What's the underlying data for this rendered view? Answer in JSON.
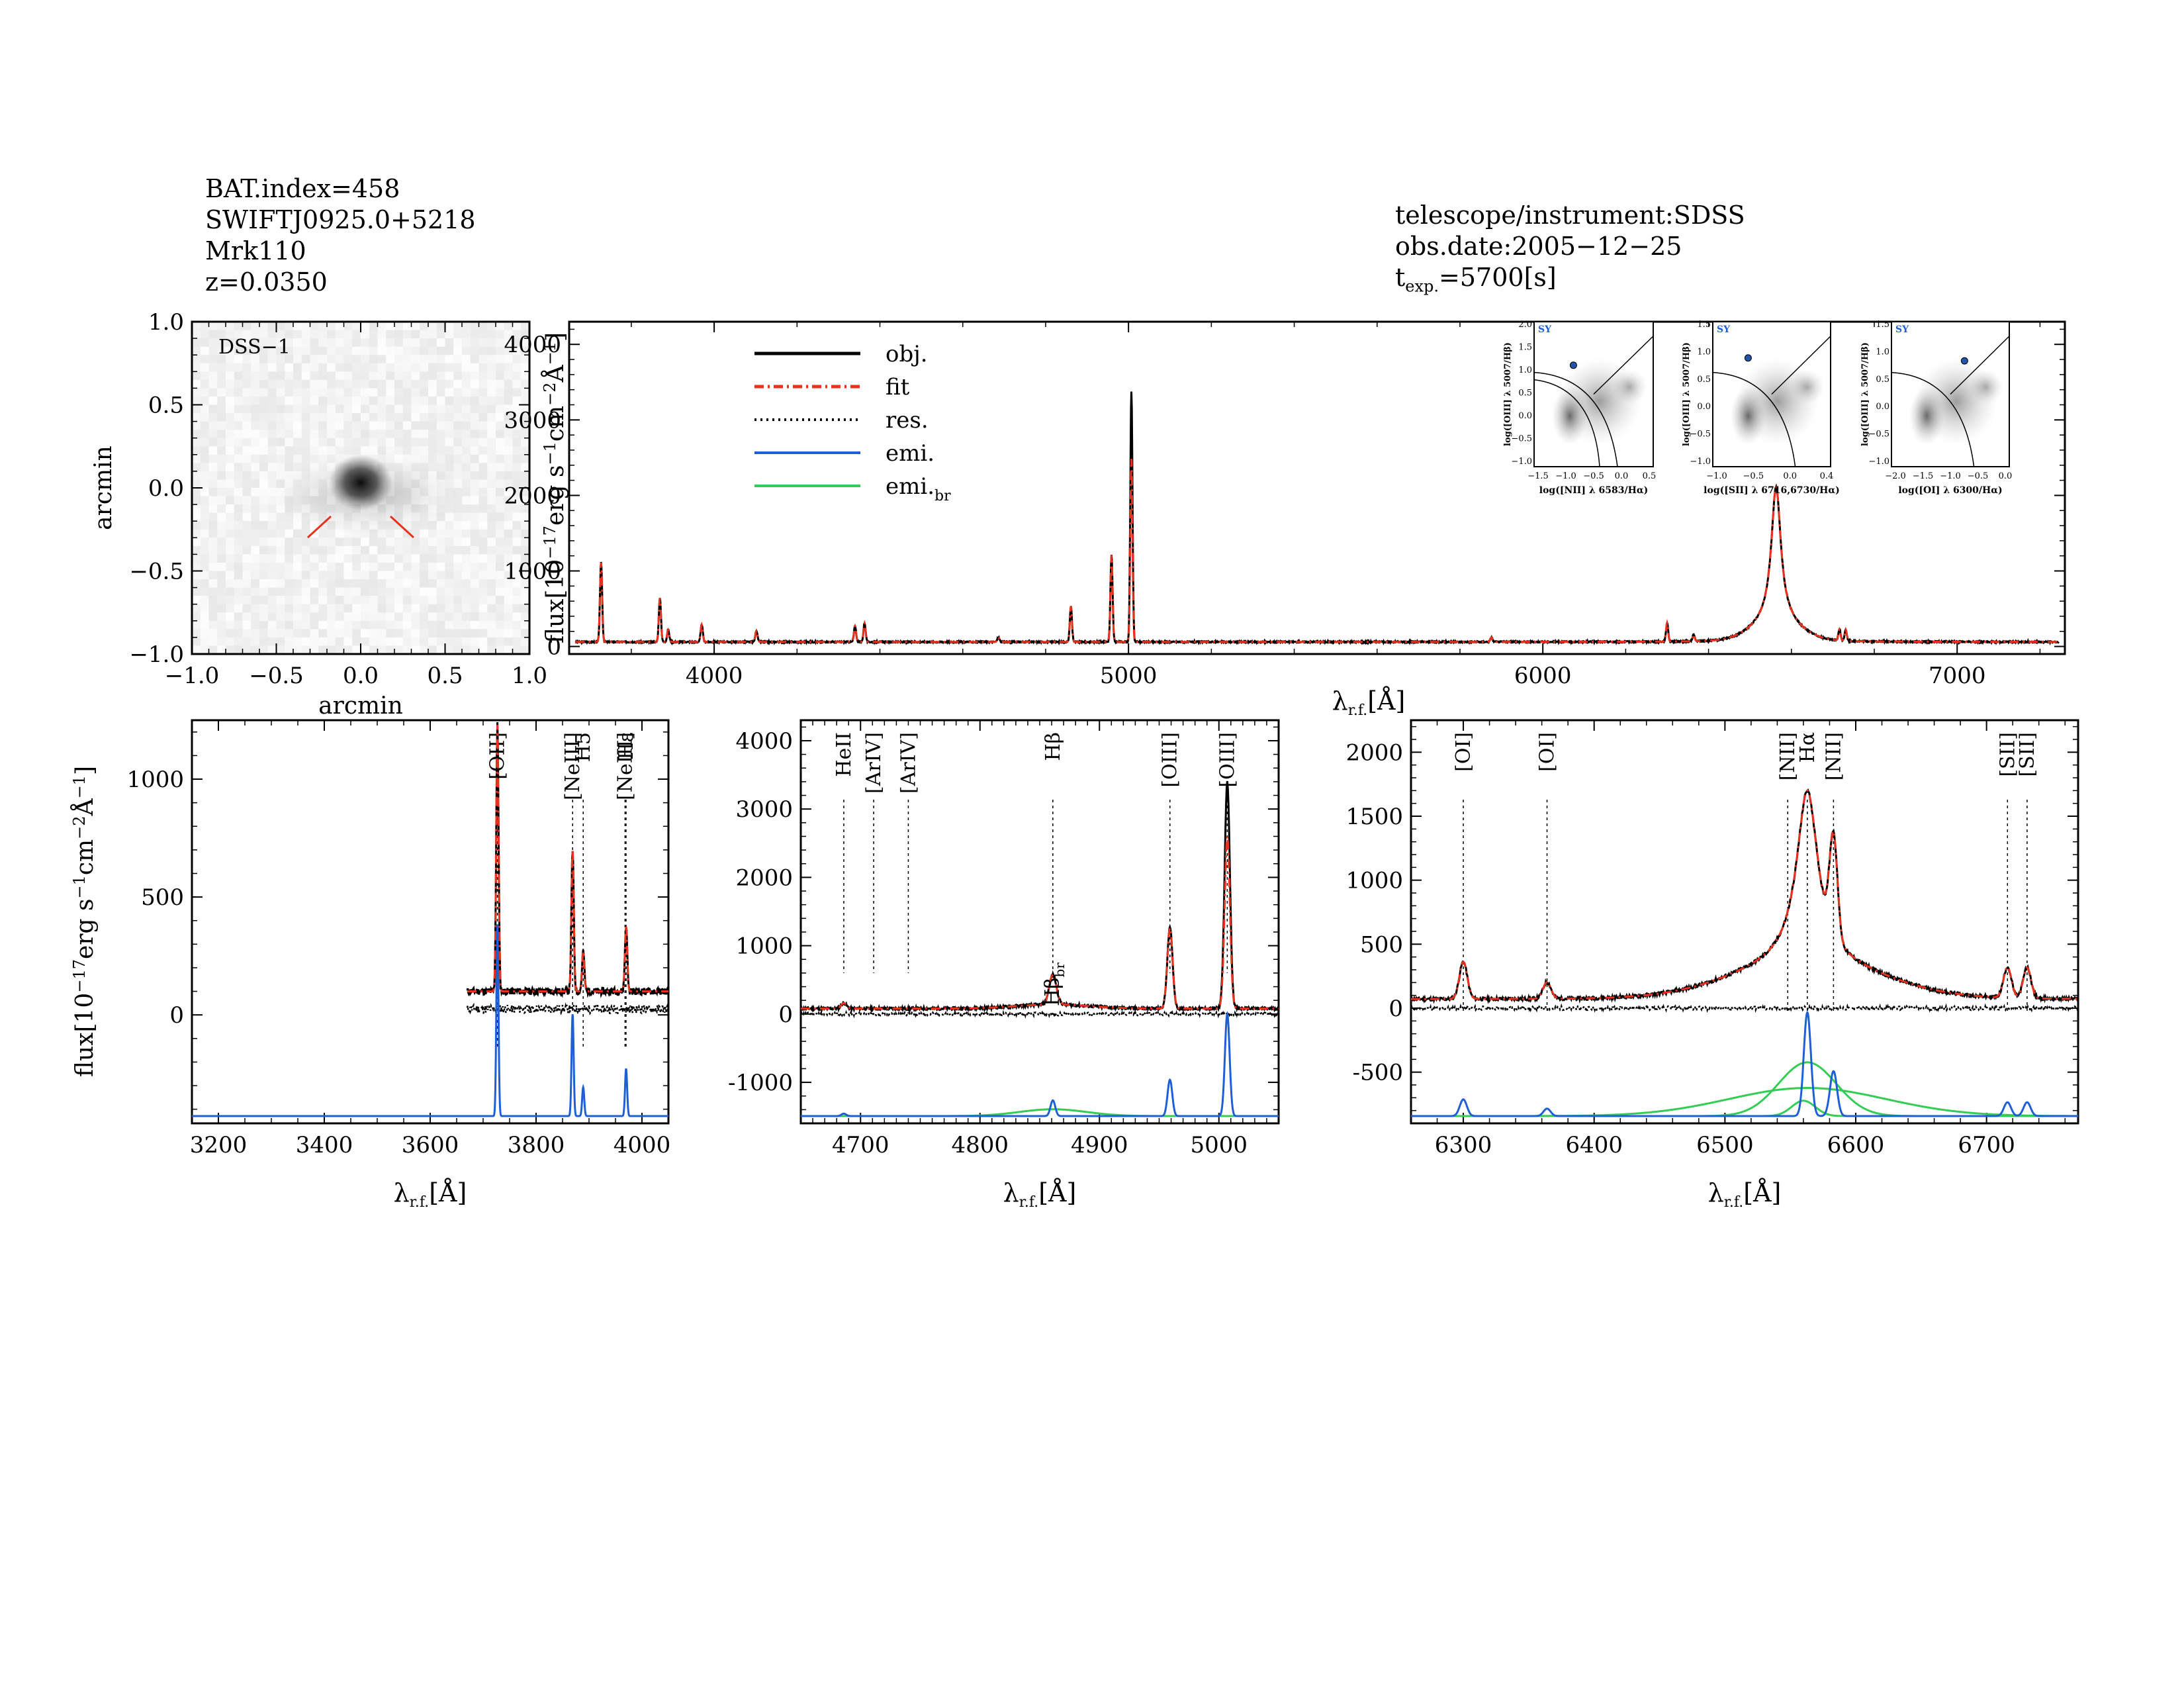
{
  "header_left": {
    "line1": "BAT.index=458",
    "line2": "SWIFTJ0925.0+5218",
    "line3": "Mrk110",
    "line4": "z=0.0350"
  },
  "header_right": {
    "line1": "telescope/instrument:SDSS",
    "line2": "obs.date:2005−12−25",
    "line3_pre": "t",
    "line3_sub": "exp.",
    "line3_post": "=5700[s]"
  },
  "colors": {
    "obj": "#000000",
    "fit": "#e8321e",
    "res": "#000000",
    "emi": "#1f5fd6",
    "emi_br": "#33cc55"
  },
  "chart_data": [
    {
      "id": "image",
      "type": "heatmap",
      "label": "DSS−1",
      "xlabel": "arcmin",
      "ylabel": "arcmin",
      "xlim": [
        -1.0,
        1.0
      ],
      "ylim": [
        -1.0,
        1.0
      ],
      "xticks": [
        "−1.0",
        "−0.5",
        "0.0",
        "0.5",
        "1.0"
      ],
      "yticks": [
        "−1.0",
        "−0.5",
        "0.0",
        "0.5",
        "1.0"
      ],
      "source_xy": [
        0.0,
        0.0
      ]
    },
    {
      "id": "full",
      "type": "line",
      "ylabel": "flux[10⁻¹⁷erg s⁻¹cm⁻²Å⁻¹]",
      "xlabel": "λr.f.[Å]",
      "xlim": [
        3650,
        7260
      ],
      "ylim": [
        -100,
        4300
      ],
      "xticks": [
        4000,
        5000,
        6000,
        7000
      ],
      "yticks": [
        0,
        1000,
        2000,
        3000,
        4000
      ],
      "continuum": 60,
      "lines": [
        {
          "x": 3727,
          "peak": 1050
        },
        {
          "x": 3869,
          "peak": 580
        },
        {
          "x": 3889,
          "peak": 160
        },
        {
          "x": 3970,
          "peak": 230
        },
        {
          "x": 4102,
          "peak": 150
        },
        {
          "x": 4340,
          "peak": 210
        },
        {
          "x": 4363,
          "peak": 250
        },
        {
          "x": 4686,
          "peak": 60
        },
        {
          "x": 4861,
          "peak": 470
        },
        {
          "x": 4959,
          "peak": 1150
        },
        {
          "x": 5007,
          "peak": 3320
        },
        {
          "x": 5876,
          "peak": 60
        },
        {
          "x": 6300,
          "peak": 250
        },
        {
          "x": 6364,
          "peak": 90
        },
        {
          "x": 6563,
          "peak": 1800
        },
        {
          "x": 6716,
          "peak": 150
        },
        {
          "x": 6731,
          "peak": 150
        }
      ],
      "legend": [
        "obj.",
        "fit",
        "res.",
        "emi.",
        "emi.br"
      ]
    },
    {
      "id": "bpt",
      "type": "scatter",
      "panels": [
        {
          "xlabel": "log([NII] λ 6583/Hα)",
          "ylabel": "log([OIII] λ 5007/Hβ)",
          "tag": "SY",
          "xticks": [
            "−1.5",
            "−1.0",
            "−0.5",
            "0.0",
            "0.5"
          ],
          "yticks": [
            "−1.0",
            "−0.5",
            "0.0",
            "0.5",
            "1.0",
            "1.5",
            "2.0"
          ],
          "point": [
            -0.75,
            0.75
          ]
        },
        {
          "xlabel": "log([SII] λ 6716,6730/Hα)",
          "ylabel": "log([OIII] λ 5007/Hβ)",
          "tag": "SY",
          "xticks": [
            "−1.0",
            "−0.5",
            "0.0",
            "0.4"
          ],
          "yticks": [
            "−1.0",
            "−0.5",
            "0.0",
            "0.5",
            "1.0",
            "1.5"
          ],
          "point": [
            -0.55,
            0.85
          ]
        },
        {
          "xlabel": "log([OI] λ 6300/Hα)",
          "ylabel": "log([OIII] λ 5007/Hβ)",
          "tag": "SY",
          "xticks": [
            "−2.0",
            "−1.5",
            "−1.0",
            "−0.5",
            "0.0"
          ],
          "yticks": [
            "−1.0",
            "−0.5",
            "0.0",
            "0.5",
            "1.0",
            "1.5"
          ],
          "point": [
            -0.9,
            0.8
          ]
        }
      ]
    },
    {
      "id": "zoom1",
      "type": "line",
      "xlim": [
        3150,
        4050
      ],
      "ylim": [
        -460,
        1250
      ],
      "xticks": [
        3200,
        3400,
        3600,
        3800,
        4000
      ],
      "yticks": [
        0,
        500,
        1000
      ],
      "ylabel": "flux[10⁻¹⁷erg s⁻¹cm⁻²Å⁻¹]",
      "xlabel": "λr.f.[Å]",
      "data_start": 3670,
      "continuum": 100,
      "lines": [
        {
          "x": 3727,
          "peak": 1130
        },
        {
          "x": 3869,
          "peak": 600
        },
        {
          "x": 3889,
          "peak": 170
        },
        {
          "x": 3970,
          "peak": 280
        }
      ],
      "markers": [
        {
          "x": 3727,
          "label": "[OII]"
        },
        {
          "x": 3869,
          "label": "[NeIII]"
        },
        {
          "x": 3889,
          "label": "H5"
        },
        {
          "x": 3968,
          "label": "[NeIII]"
        },
        {
          "x": 3970,
          "label": "Hε"
        }
      ]
    },
    {
      "id": "zoom2",
      "type": "line",
      "xlim": [
        4650,
        5050
      ],
      "ylim": [
        -1600,
        4300
      ],
      "xticks": [
        4700,
        4800,
        4900,
        5000
      ],
      "yticks": [
        -1000,
        0,
        1000,
        2000,
        3000,
        4000
      ],
      "xlabel": "λr.f.[Å]",
      "continuum": 80,
      "lines": [
        {
          "x": 4686,
          "peak": 80
        },
        {
          "x": 4861,
          "peak": 510
        },
        {
          "x": 4959,
          "peak": 1180
        },
        {
          "x": 5007,
          "peak": 3320
        }
      ],
      "markers": [
        {
          "x": 4686,
          "label": "HeII"
        },
        {
          "x": 4711,
          "label": "[ArIV]"
        },
        {
          "x": 4740,
          "label": "[ArIV]"
        },
        {
          "x": 4861,
          "label": "Hβ"
        },
        {
          "x": 4959,
          "label": "[OIII]"
        },
        {
          "x": 5007,
          "label": "[OIII]"
        }
      ],
      "extra_label": "Hβbr"
    },
    {
      "id": "zoom3",
      "type": "line",
      "xlim": [
        6260,
        6770
      ],
      "ylim": [
        -900,
        2250
      ],
      "xticks": [
        6300,
        6400,
        6500,
        6600,
        6700
      ],
      "yticks": [
        -500,
        0,
        500,
        1000,
        1500,
        2000
      ],
      "xlabel": "λr.f.[Å]",
      "continuum": 70,
      "lines": [
        {
          "x": 6300,
          "peak": 290
        },
        {
          "x": 6364,
          "peak": 130
        },
        {
          "x": 6563,
          "peak": 1800
        },
        {
          "x": 6583,
          "peak": 780
        },
        {
          "x": 6716,
          "peak": 240
        },
        {
          "x": 6731,
          "peak": 240
        }
      ],
      "markers": [
        {
          "x": 6300,
          "label": "[OI]"
        },
        {
          "x": 6364,
          "label": "[OI]"
        },
        {
          "x": 6548,
          "label": "[NII]"
        },
        {
          "x": 6563,
          "label": "Hα"
        },
        {
          "x": 6583,
          "label": "[NII]"
        },
        {
          "x": 6716,
          "label": "[SII]"
        },
        {
          "x": 6731,
          "label": "[SII]"
        }
      ]
    }
  ]
}
